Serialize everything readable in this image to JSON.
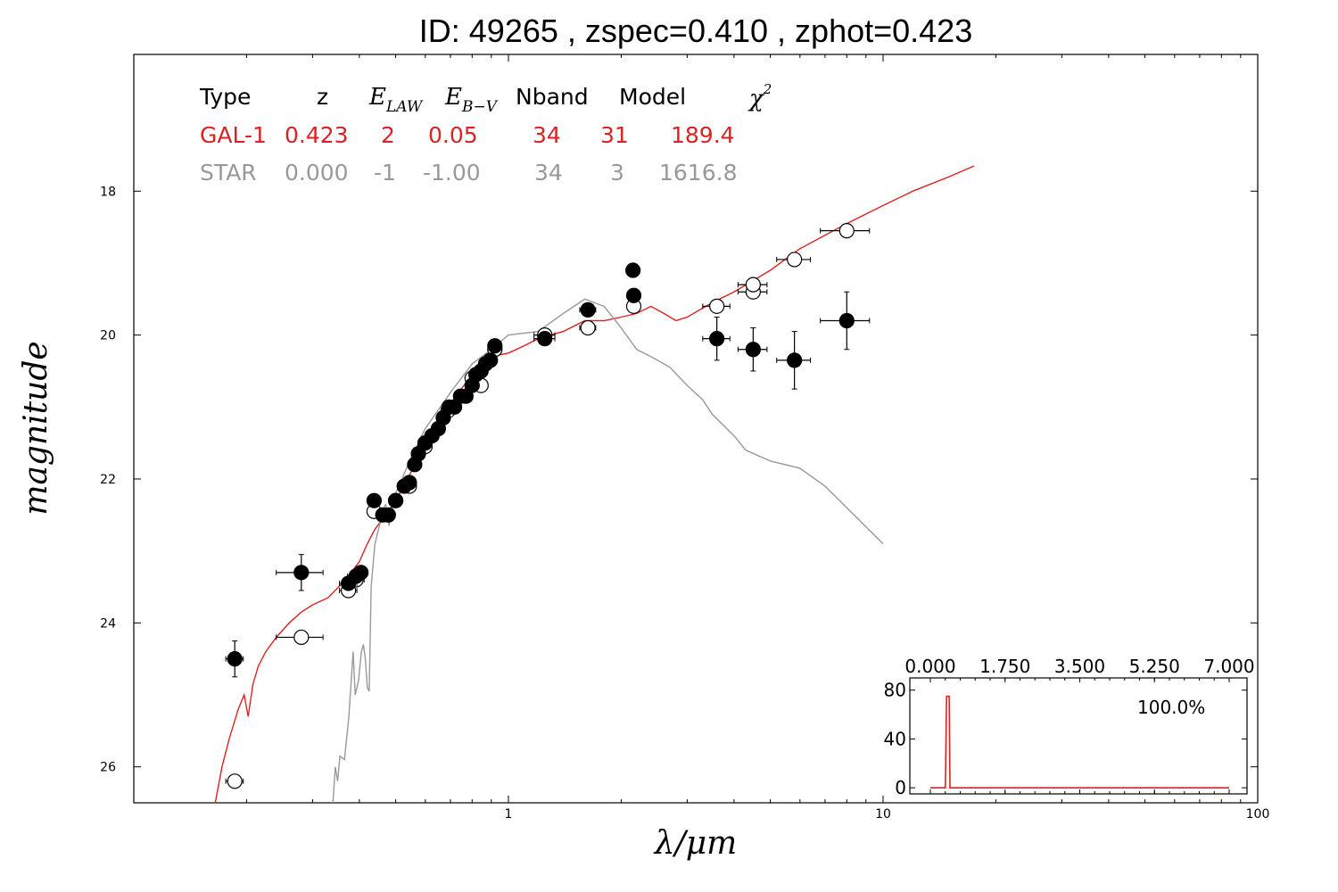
{
  "title": "ID:  49265 , zspec=0.410 , zphot=0.423",
  "colors": {
    "galaxy": "#dd2222",
    "star": "#999999",
    "axis": "#000000"
  },
  "table": {
    "headers": {
      "type": "Type",
      "z": "z",
      "elaw": "E",
      "elaw_sub": "LAW",
      "ebv": "E",
      "ebv_sub": "B−V",
      "nband": "Nband",
      "model": "Model",
      "chi": "χ",
      "chi_sup": "2"
    },
    "rows": [
      {
        "type": "GAL-1",
        "z": "0.423",
        "elaw": "2",
        "ebv": "0.05",
        "nband": "34",
        "model": "31",
        "chi2": "189.4",
        "color": "#dd2222"
      },
      {
        "type": "STAR",
        "z": "0.000",
        "elaw": "-1",
        "ebv": "-1.00",
        "nband": "34",
        "model": "3",
        "chi2": "1616.8",
        "color": "#999999"
      }
    ]
  },
  "chart_data": [
    {
      "type": "scatter",
      "title": "ID:  49265 , zspec=0.410 , zphot=0.423",
      "xlabel": "λ/μm",
      "ylabel": "magnitude",
      "x_scale": "log",
      "xlim": [
        0.1,
        100
      ],
      "ylim": [
        26.5,
        16.1
      ],
      "y_inverted": true,
      "x_ticks": [
        {
          "v": 1,
          "label": "1"
        },
        {
          "v": 10,
          "label": "10"
        },
        {
          "v": 100,
          "label": "100"
        }
      ],
      "y_ticks": [
        {
          "v": 18,
          "label": "18"
        },
        {
          "v": 20,
          "label": "20"
        },
        {
          "v": 22,
          "label": "22"
        },
        {
          "v": 24,
          "label": "24"
        },
        {
          "v": 26,
          "label": "26"
        }
      ],
      "series": [
        {
          "kind": "observed",
          "marker": "filled-circle",
          "points": [
            [
              0.186,
              24.5,
              0.01,
              0.25
            ],
            [
              0.28,
              23.3,
              0.04,
              0.25
            ],
            [
              0.374,
              23.45,
              0.02,
              0.05
            ],
            [
              0.392,
              23.35,
              0.02,
              0.05
            ],
            [
              0.404,
              23.3,
              0.01,
              0.05
            ],
            [
              0.438,
              22.3,
              0.01,
              0.05
            ],
            [
              0.462,
              22.5,
              0.01,
              0.05
            ],
            [
              0.478,
              22.5,
              0.01,
              0.05
            ],
            [
              0.5,
              22.3,
              0.01,
              0.05
            ],
            [
              0.527,
              22.1,
              0.01,
              0.05
            ],
            [
              0.544,
              22.05,
              0.01,
              0.05
            ],
            [
              0.562,
              21.8,
              0.01,
              0.05
            ],
            [
              0.575,
              21.65,
              0.01,
              0.05
            ],
            [
              0.599,
              21.5,
              0.01,
              0.05
            ],
            [
              0.625,
              21.4,
              0.01,
              0.05
            ],
            [
              0.65,
              21.3,
              0.01,
              0.05
            ],
            [
              0.67,
              21.15,
              0.01,
              0.05
            ],
            [
              0.694,
              21.0,
              0.01,
              0.05
            ],
            [
              0.718,
              21.0,
              0.01,
              0.05
            ],
            [
              0.745,
              20.85,
              0.01,
              0.05
            ],
            [
              0.77,
              20.85,
              0.01,
              0.05
            ],
            [
              0.8,
              20.7,
              0.01,
              0.05
            ],
            [
              0.819,
              20.55,
              0.01,
              0.05
            ],
            [
              0.845,
              20.5,
              0.01,
              0.05
            ],
            [
              0.869,
              20.4,
              0.01,
              0.05
            ],
            [
              0.895,
              20.35,
              0.01,
              0.05
            ],
            [
              0.92,
              20.15,
              0.02,
              0.05
            ],
            [
              1.25,
              20.05,
              0.08,
              0.08
            ],
            [
              1.63,
              19.65,
              0.08,
              0.05
            ],
            [
              2.15,
              19.1,
              0.06,
              0.05
            ],
            [
              2.16,
              19.45,
              0.06,
              0.05
            ],
            [
              3.6,
              20.05,
              0.3,
              0.3
            ],
            [
              4.5,
              20.2,
              0.4,
              0.3
            ],
            [
              5.8,
              20.35,
              0.6,
              0.4
            ],
            [
              8.0,
              19.8,
              1.2,
              0.4
            ]
          ]
        },
        {
          "kind": "model",
          "marker": "open-circle",
          "points": [
            [
              0.186,
              26.2,
              0.01,
              0.03
            ],
            [
              0.28,
              24.2,
              0.04,
              0.03
            ],
            [
              0.374,
              23.55,
              0.02,
              0.03
            ],
            [
              0.392,
              23.4,
              0.02,
              0.03
            ],
            [
              0.438,
              22.45,
              0.01,
              0.03
            ],
            [
              0.5,
              22.3,
              0.01,
              0.03
            ],
            [
              0.544,
              22.1,
              0.01,
              0.03
            ],
            [
              0.599,
              21.55,
              0.01,
              0.03
            ],
            [
              0.69,
              21.05,
              0.01,
              0.03
            ],
            [
              0.8,
              20.6,
              0.01,
              0.03
            ],
            [
              0.845,
              20.7,
              0.01,
              0.03
            ],
            [
              0.92,
              20.2,
              0.02,
              0.03
            ],
            [
              1.25,
              20.0,
              0.08,
              0.03
            ],
            [
              1.63,
              19.9,
              0.08,
              0.03
            ],
            [
              2.16,
              19.6,
              0.06,
              0.03
            ],
            [
              3.6,
              19.6,
              0.3,
              0.03
            ],
            [
              4.5,
              19.4,
              0.4,
              0.03
            ],
            [
              4.5,
              19.3,
              0.4,
              0.03
            ],
            [
              5.8,
              18.95,
              0.6,
              0.03
            ],
            [
              8.0,
              18.55,
              1.2,
              0.03
            ]
          ]
        },
        {
          "kind": "line",
          "name": "GAL-1",
          "points": [
            [
              0.165,
              26.5
            ],
            [
              0.172,
              26.0
            ],
            [
              0.18,
              25.6
            ],
            [
              0.19,
              25.2
            ],
            [
              0.197,
              25.0
            ],
            [
              0.202,
              25.3
            ],
            [
              0.208,
              24.85
            ],
            [
              0.215,
              24.6
            ],
            [
              0.225,
              24.4
            ],
            [
              0.24,
              24.2
            ],
            [
              0.26,
              24.0
            ],
            [
              0.28,
              23.85
            ],
            [
              0.3,
              23.75
            ],
            [
              0.33,
              23.65
            ],
            [
              0.36,
              23.45
            ],
            [
              0.38,
              23.3
            ],
            [
              0.4,
              23.15
            ],
            [
              0.42,
              22.9
            ],
            [
              0.44,
              22.7
            ],
            [
              0.47,
              22.5
            ],
            [
              0.5,
              22.3
            ],
            [
              0.55,
              21.9
            ],
            [
              0.6,
              21.5
            ],
            [
              0.65,
              21.2
            ],
            [
              0.7,
              20.95
            ],
            [
              0.8,
              20.55
            ],
            [
              0.9,
              20.3
            ],
            [
              1.0,
              20.25
            ],
            [
              1.1,
              20.15
            ],
            [
              1.2,
              20.05
            ],
            [
              1.4,
              19.95
            ],
            [
              1.6,
              19.8
            ],
            [
              1.8,
              19.8
            ],
            [
              2.0,
              19.75
            ],
            [
              2.2,
              19.7
            ],
            [
              2.4,
              19.6
            ],
            [
              2.6,
              19.7
            ],
            [
              2.8,
              19.8
            ],
            [
              3.0,
              19.75
            ],
            [
              3.5,
              19.55
            ],
            [
              4.0,
              19.4
            ],
            [
              5.0,
              19.1
            ],
            [
              6.0,
              18.8
            ],
            [
              8.0,
              18.45
            ],
            [
              10.0,
              18.2
            ],
            [
              12.0,
              18.0
            ],
            [
              15.0,
              17.8
            ],
            [
              17.5,
              17.65
            ]
          ]
        },
        {
          "kind": "line",
          "name": "STAR",
          "points": [
            [
              0.34,
              26.5
            ],
            [
              0.345,
              26.0
            ],
            [
              0.35,
              26.2
            ],
            [
              0.355,
              25.85
            ],
            [
              0.365,
              25.9
            ],
            [
              0.375,
              25.3
            ],
            [
              0.385,
              24.4
            ],
            [
              0.39,
              25.0
            ],
            [
              0.398,
              24.8
            ],
            [
              0.405,
              24.4
            ],
            [
              0.41,
              24.3
            ],
            [
              0.415,
              24.5
            ],
            [
              0.42,
              24.9
            ],
            [
              0.425,
              24.95
            ],
            [
              0.43,
              23.5
            ],
            [
              0.44,
              22.9
            ],
            [
              0.46,
              22.5
            ],
            [
              0.47,
              22.35
            ],
            [
              0.48,
              22.65
            ],
            [
              0.5,
              22.2
            ],
            [
              0.55,
              21.7
            ],
            [
              0.6,
              21.3
            ],
            [
              0.7,
              20.8
            ],
            [
              0.8,
              20.4
            ],
            [
              0.9,
              20.2
            ],
            [
              1.0,
              20.0
            ],
            [
              1.2,
              19.95
            ],
            [
              1.4,
              19.7
            ],
            [
              1.6,
              19.5
            ],
            [
              1.8,
              19.6
            ],
            [
              2.0,
              19.9
            ],
            [
              2.2,
              20.2
            ],
            [
              2.4,
              20.3
            ],
            [
              2.5,
              20.35
            ],
            [
              2.7,
              20.45
            ],
            [
              3.0,
              20.7
            ],
            [
              3.3,
              20.9
            ],
            [
              3.5,
              21.1
            ],
            [
              4.0,
              21.4
            ],
            [
              4.3,
              21.6
            ],
            [
              5.0,
              21.75
            ],
            [
              6.0,
              21.85
            ],
            [
              7.0,
              22.1
            ],
            [
              8.0,
              22.4
            ],
            [
              10.0,
              22.9
            ]
          ]
        }
      ]
    },
    {
      "type": "line",
      "title": "",
      "xlabel": "",
      "ylabel": "",
      "xlim": [
        0,
        7
      ],
      "ylim": [
        -5,
        90
      ],
      "x_ticks": [
        {
          "v": 0,
          "label": "0.000"
        },
        {
          "v": 1.75,
          "label": "1.750"
        },
        {
          "v": 3.5,
          "label": "3.500"
        },
        {
          "v": 5.25,
          "label": "5.250"
        },
        {
          "v": 7,
          "label": "7.000"
        }
      ],
      "y_ticks": [
        {
          "v": 0,
          "label": "0"
        },
        {
          "v": 40,
          "label": "40"
        },
        {
          "v": 80,
          "label": "80"
        }
      ],
      "annotation": "100.0%",
      "series": [
        {
          "points": [
            [
              0,
              0
            ],
            [
              0.35,
              0
            ],
            [
              0.38,
              75
            ],
            [
              0.44,
              75
            ],
            [
              0.46,
              0
            ],
            [
              7.0,
              0
            ]
          ]
        }
      ]
    }
  ]
}
